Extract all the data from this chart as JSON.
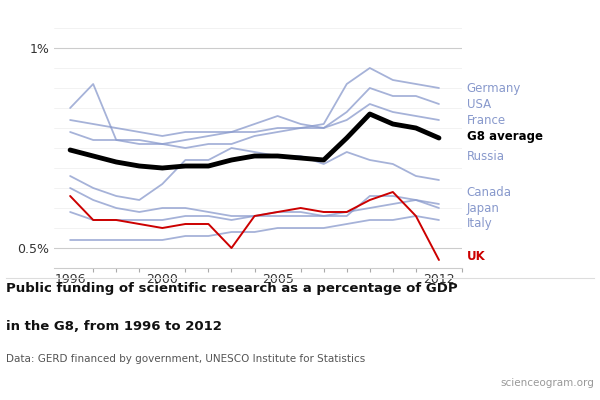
{
  "years": [
    1996,
    1997,
    1998,
    1999,
    2000,
    2001,
    2002,
    2003,
    2004,
    2005,
    2006,
    2007,
    2008,
    2009,
    2010,
    2011,
    2012
  ],
  "germany": [
    0.85,
    0.91,
    0.77,
    0.77,
    0.76,
    0.75,
    0.76,
    0.76,
    0.78,
    0.79,
    0.8,
    0.81,
    0.91,
    0.95,
    0.92,
    0.91,
    0.9
  ],
  "usa": [
    0.79,
    0.77,
    0.77,
    0.76,
    0.76,
    0.77,
    0.78,
    0.79,
    0.79,
    0.8,
    0.8,
    0.8,
    0.84,
    0.9,
    0.88,
    0.88,
    0.86
  ],
  "france": [
    0.82,
    0.81,
    0.8,
    0.79,
    0.78,
    0.79,
    0.79,
    0.79,
    0.81,
    0.83,
    0.81,
    0.8,
    0.82,
    0.86,
    0.84,
    0.83,
    0.82
  ],
  "g8avg": [
    0.745,
    0.73,
    0.715,
    0.705,
    0.7,
    0.705,
    0.705,
    0.72,
    0.73,
    0.73,
    0.725,
    0.72,
    0.775,
    0.835,
    0.81,
    0.8,
    0.775
  ],
  "russia": [
    0.68,
    0.65,
    0.63,
    0.62,
    0.66,
    0.72,
    0.72,
    0.75,
    0.74,
    0.73,
    0.73,
    0.71,
    0.74,
    0.72,
    0.71,
    0.68,
    0.67
  ],
  "canada": [
    0.65,
    0.62,
    0.6,
    0.59,
    0.6,
    0.6,
    0.59,
    0.58,
    0.58,
    0.59,
    0.59,
    0.58,
    0.58,
    0.63,
    0.63,
    0.62,
    0.61
  ],
  "japan": [
    0.59,
    0.57,
    0.57,
    0.57,
    0.57,
    0.58,
    0.58,
    0.57,
    0.58,
    0.58,
    0.58,
    0.58,
    0.59,
    0.6,
    0.61,
    0.62,
    0.6
  ],
  "italy": [
    0.52,
    0.52,
    0.52,
    0.52,
    0.52,
    0.53,
    0.53,
    0.54,
    0.54,
    0.55,
    0.55,
    0.55,
    0.56,
    0.57,
    0.57,
    0.58,
    0.57
  ],
  "uk": [
    0.63,
    0.57,
    0.57,
    0.56,
    0.55,
    0.56,
    0.56,
    0.5,
    0.58,
    0.59,
    0.6,
    0.59,
    0.59,
    0.62,
    0.64,
    0.58,
    0.47
  ],
  "country_color": "#8899cc",
  "uk_color": "#cc0000",
  "g8_color": "#000000",
  "title_main": "Public funding of scientific research as a percentage of GDP",
  "title_sub": "in the G8, from 1996 to 2012",
  "data_note": "Data: GERD financed by government, UNESCO Institute for Statistics",
  "source_note": "scienceogram.org",
  "bg_color": "#ffffff",
  "ylim_low": 0.45,
  "ylim_high": 1.05
}
